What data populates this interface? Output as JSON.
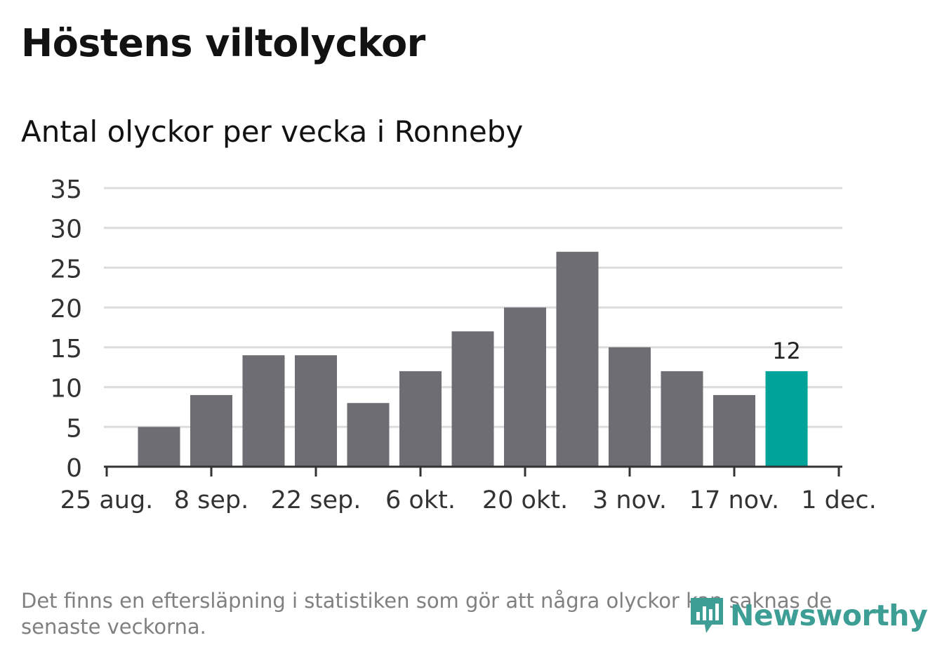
{
  "title": "Höstens viltolyckor",
  "subtitle": "Antal olyckor per vecka i Ronneby",
  "footnote": "Det finns en eftersläpning i statistiken som gör att några olyckor kan saknas de senaste veckorna.",
  "logo_text": "Newsworthy",
  "colors": {
    "bar": "#6e6d73",
    "highlight": "#00a39a",
    "grid": "#dcdcdc",
    "axis": "#333333",
    "logo": "#3c9e94"
  },
  "chart_data": {
    "type": "bar",
    "title": "",
    "xlabel": "",
    "ylabel": "",
    "ylim": [
      0,
      35
    ],
    "y_ticks": [
      0,
      5,
      10,
      15,
      20,
      25,
      30,
      35
    ],
    "x_ticks": [
      "25 aug.",
      "8 sep.",
      "22 sep.",
      "6 okt.",
      "20 okt.",
      "3 nov.",
      "17 nov.",
      "1 dec."
    ],
    "values": [
      5,
      9,
      14,
      14,
      8,
      12,
      17,
      20,
      27,
      15,
      12,
      9,
      12
    ],
    "highlight_index": 12,
    "data_labels": [
      {
        "index": 12,
        "text": "12"
      }
    ],
    "grid": true,
    "legend": "none"
  }
}
